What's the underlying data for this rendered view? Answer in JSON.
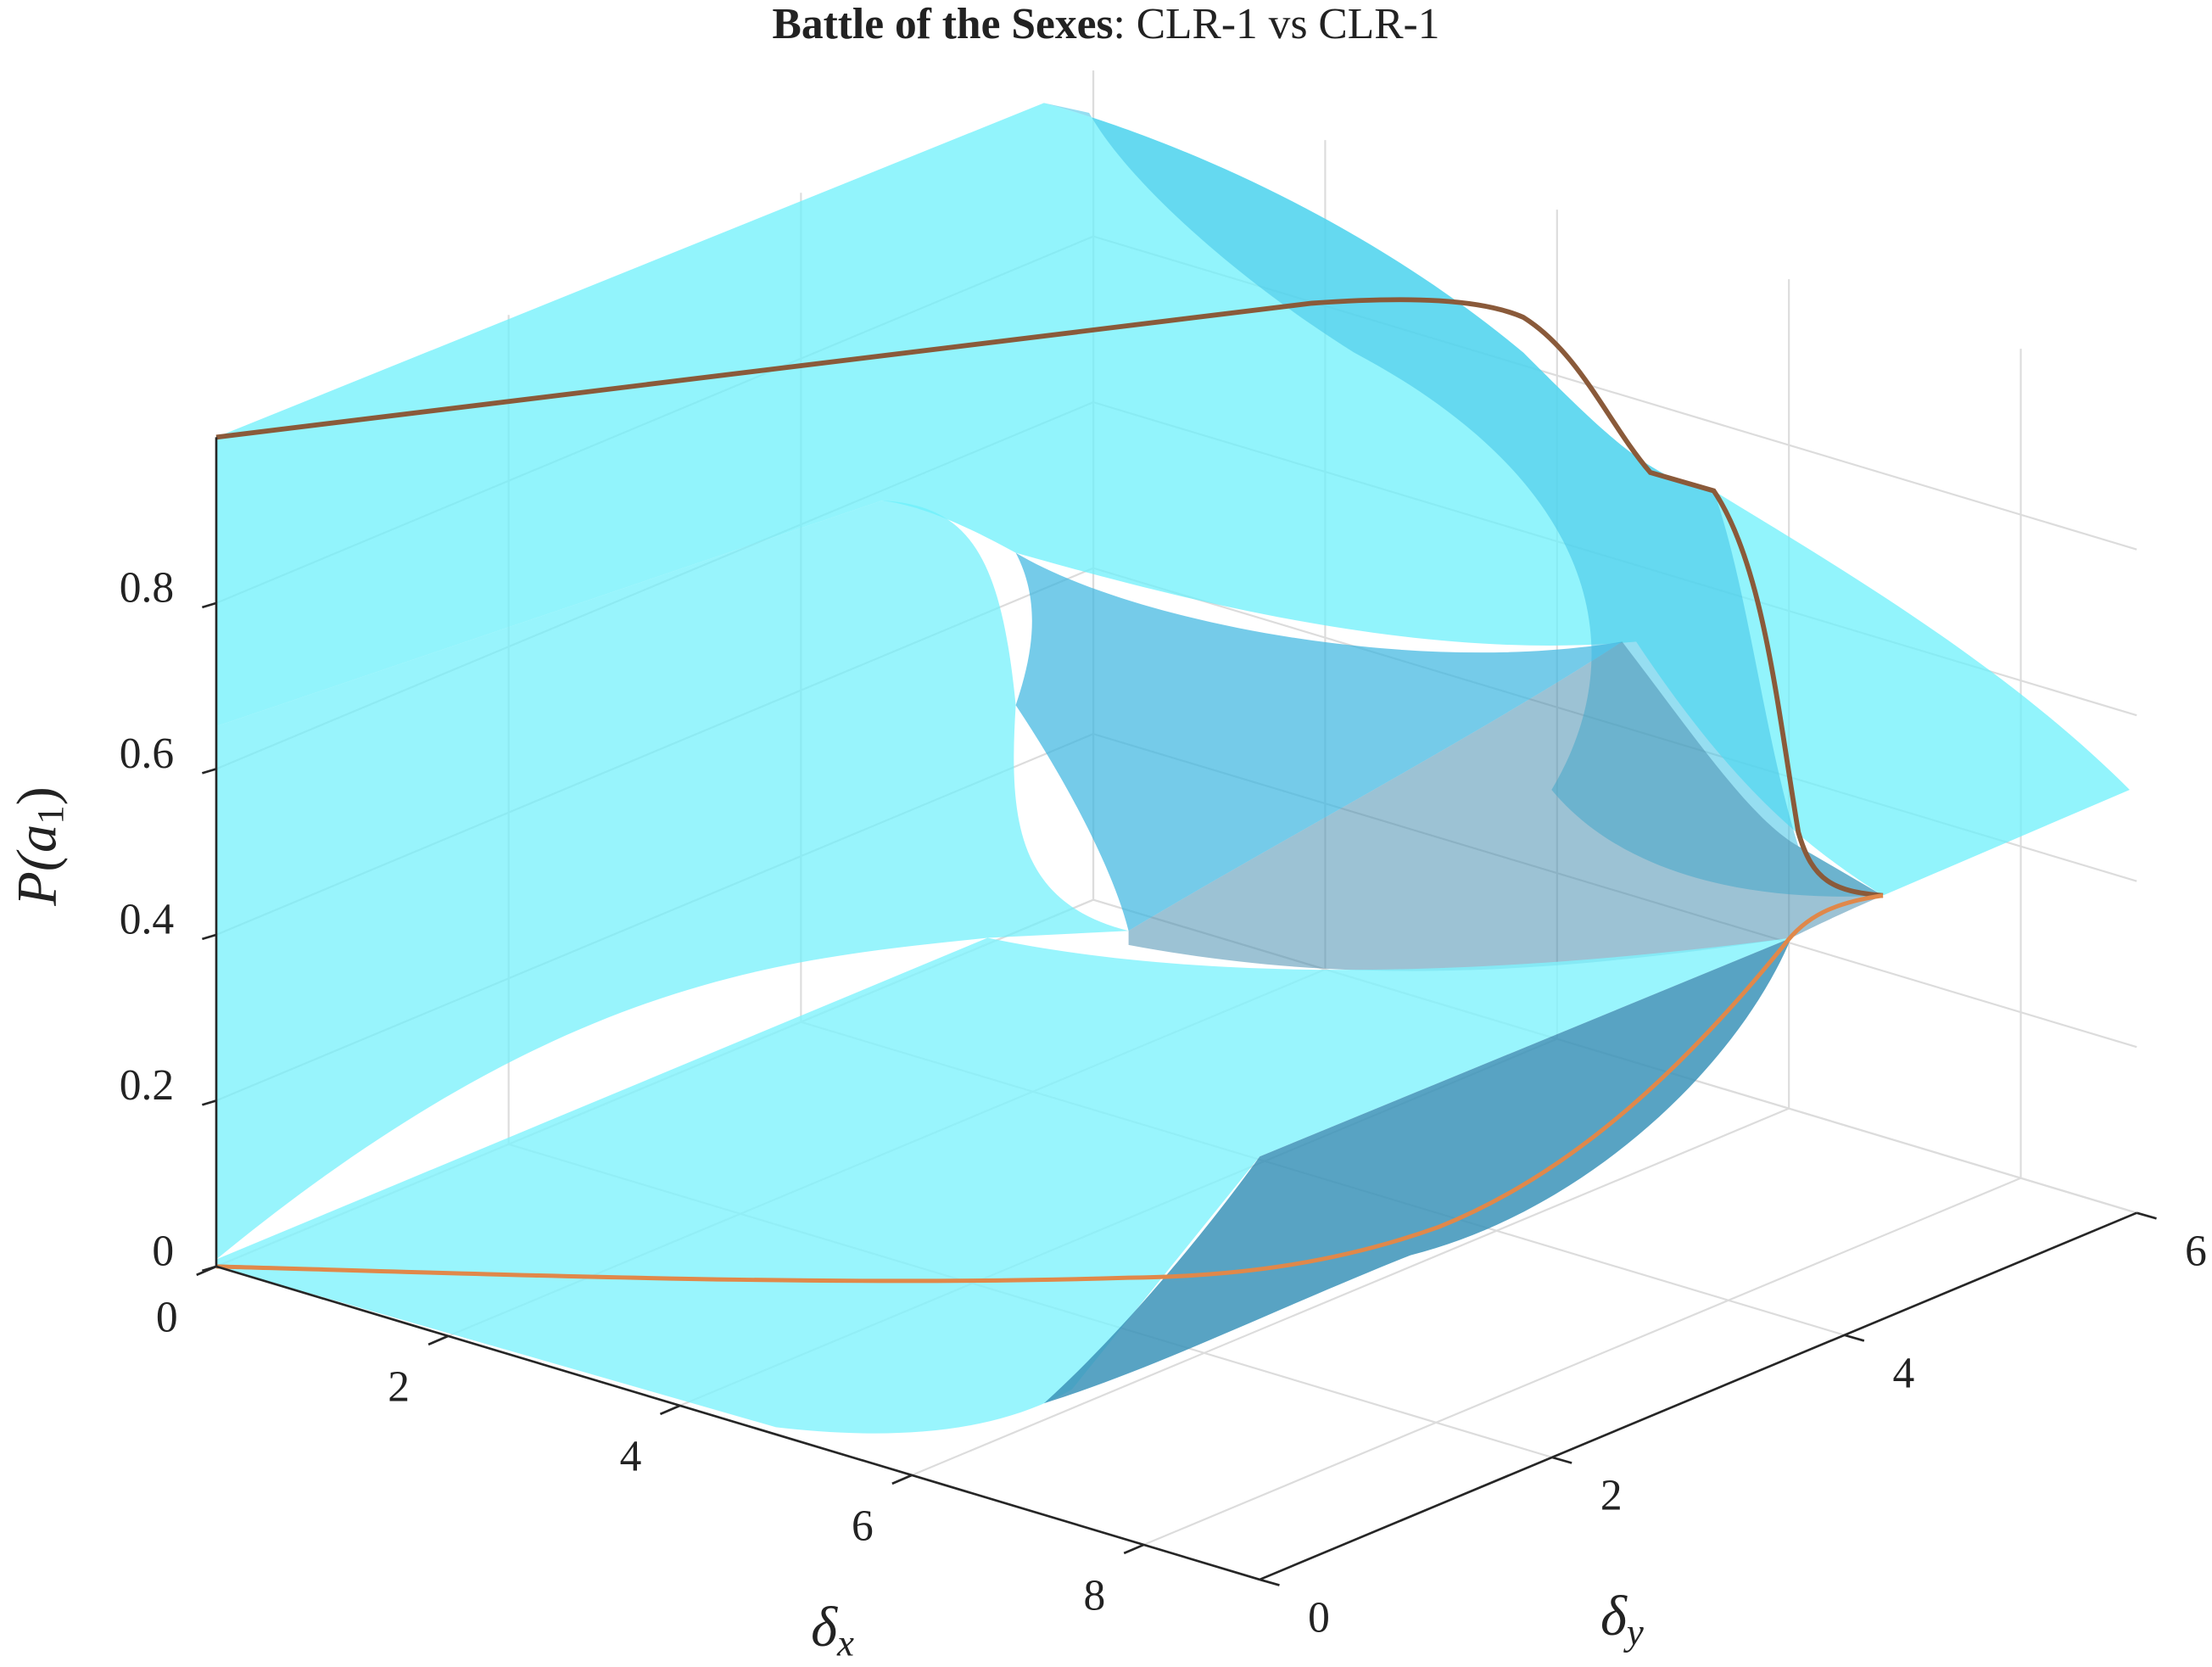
{
  "chart_data": {
    "type": "surface3d",
    "title_bold": "Battle of the Sexes",
    "title_rest": ": CLR-1 vs CLR-1",
    "x_label": {
      "symbol": "δ",
      "subscript": "x"
    },
    "y_label": {
      "symbol": "δ",
      "subscript": "y"
    },
    "z_label": {
      "text": "P(a",
      "subscript": "1",
      "close": ")"
    },
    "xlim": [
      0,
      9
    ],
    "xticks": [
      0,
      2,
      4,
      6,
      8
    ],
    "ylim": [
      0,
      6
    ],
    "yticks": [
      0,
      2,
      4,
      6
    ],
    "zlim": [
      0,
      1
    ],
    "zticks": [
      0,
      0.2,
      0.4,
      0.6,
      0.8
    ],
    "grid": true
  }
}
